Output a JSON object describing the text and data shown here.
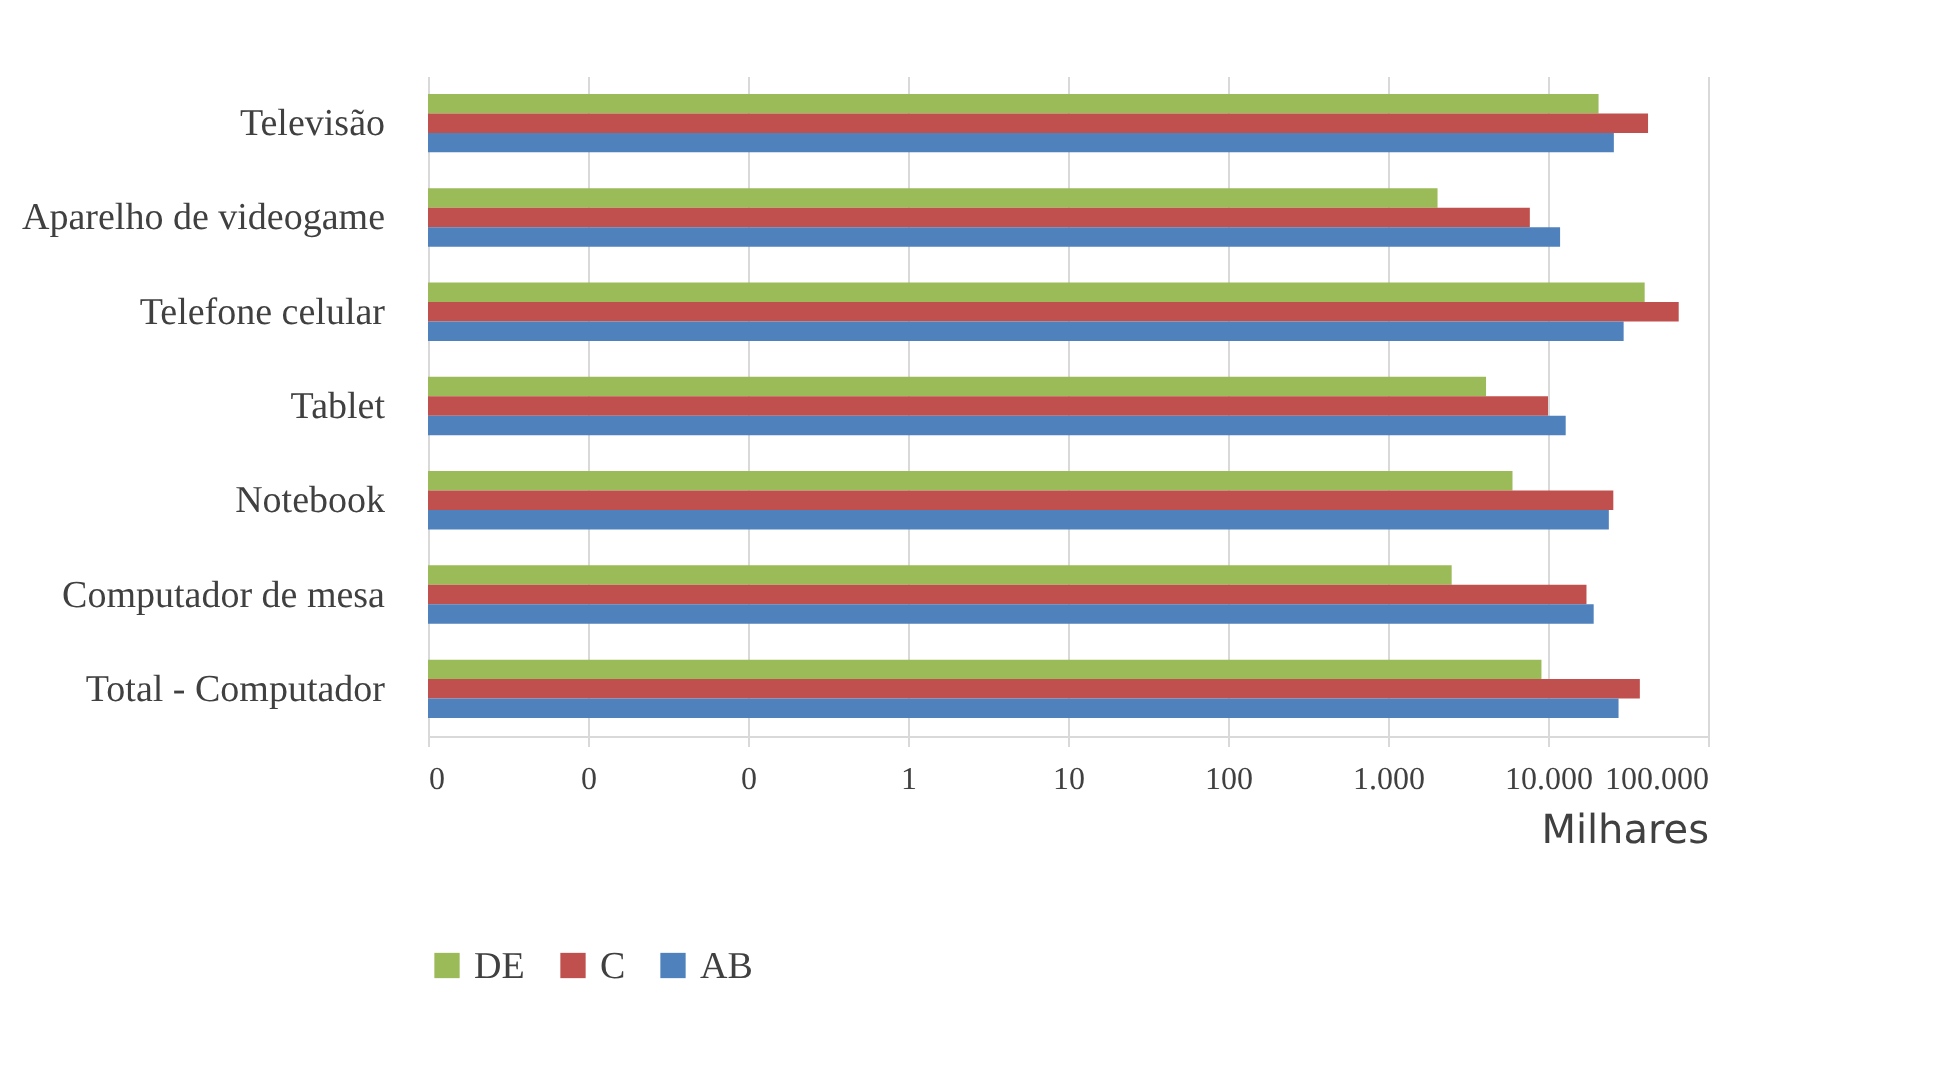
{
  "chart_data": {
    "type": "bar",
    "orientation": "horizontal",
    "xlabel": "Milhares",
    "categories": [
      "Televisão",
      "Aparelho de videogame",
      "Telefone celular",
      "Tablet",
      "Notebook",
      "Computador de mesa",
      "Total - Computador"
    ],
    "series": [
      {
        "name": "DE",
        "color": "#9bbb59",
        "values": [
          20700,
          2040,
          40200,
          4100,
          6000,
          2500,
          9100
        ]
      },
      {
        "name": "C",
        "color": "#c0504d",
        "values": [
          42200,
          7700,
          65600,
          10000,
          25600,
          17400,
          37500
        ]
      },
      {
        "name": "AB",
        "color": "#4f81bd",
        "values": [
          25800,
          11900,
          29700,
          12900,
          24000,
          19300,
          27600
        ]
      }
    ],
    "log": "x",
    "xlim": [
      0.001,
      100000
    ],
    "xticks": [
      {
        "value": 0.001,
        "label": "0"
      },
      {
        "value": 0.01,
        "label": "0"
      },
      {
        "value": 0.1,
        "label": "0"
      },
      1,
      10,
      100,
      {
        "value": 1000,
        "label": "1.000"
      },
      {
        "value": 10000,
        "label": "10.000"
      },
      {
        "value": 100000,
        "label": "100.000"
      }
    ],
    "grid": "x",
    "legend": "bottom"
  }
}
